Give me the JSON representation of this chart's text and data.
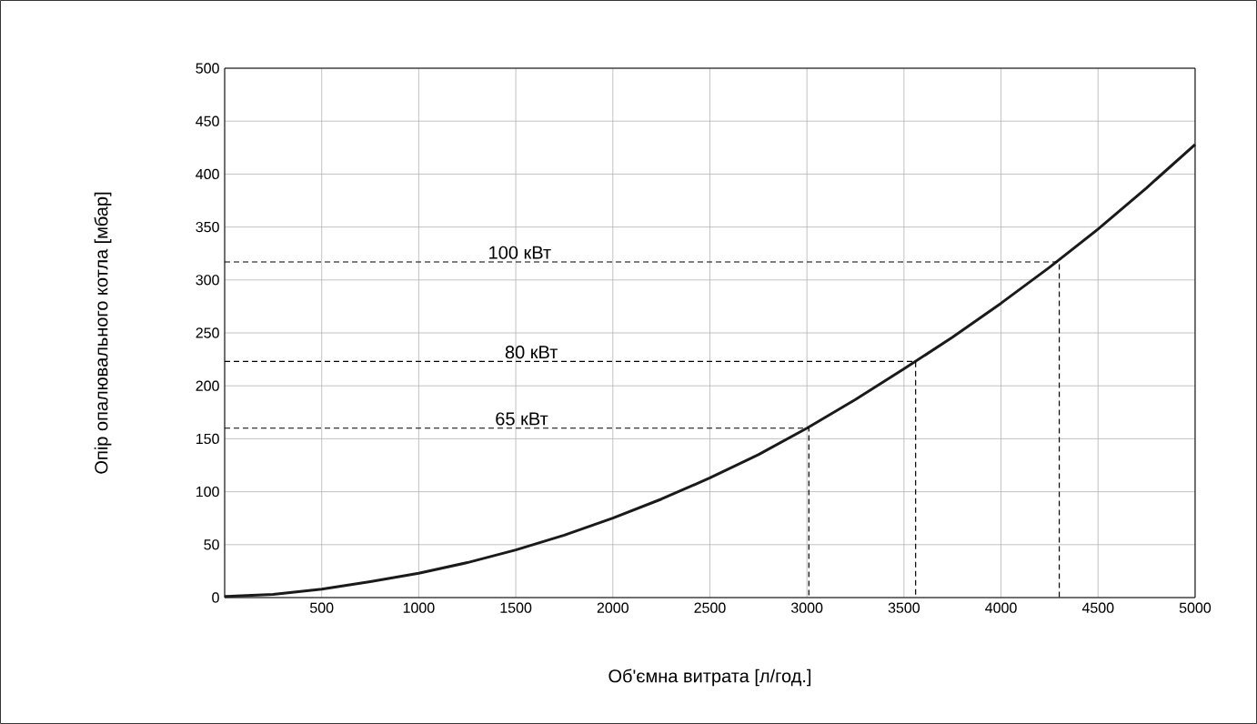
{
  "chart_data": {
    "type": "line",
    "xlabel": "Об'ємна витрата [л/год.]",
    "ylabel": "Опір опалювального котла [мбар]",
    "x": [
      0,
      250,
      500,
      750,
      1000,
      1250,
      1500,
      1750,
      2000,
      2250,
      2500,
      2750,
      3000,
      3250,
      3500,
      3750,
      4000,
      4250,
      4500,
      4750,
      5000
    ],
    "series": [
      {
        "color": "#1a1a1a",
        "values": [
          1,
          3,
          8,
          15,
          23,
          33,
          45,
          59,
          75,
          93,
          113,
          135,
          160,
          187,
          216,
          246,
          278,
          312,
          348,
          387,
          428
        ]
      },
      {
        "color": "#000000",
        "line_style": "dashed",
        "x": [
          0,
          4300,
          4300
        ],
        "values": [
          317,
          317,
          0
        ]
      },
      {
        "color": "#000000",
        "line_style": "dashed",
        "x": [
          0,
          3560,
          3560
        ],
        "values": [
          223,
          223,
          0
        ]
      },
      {
        "color": "#000000",
        "line_style": "dashed",
        "x": [
          0,
          3010,
          3010
        ],
        "values": [
          160,
          160,
          0
        ]
      }
    ],
    "xlim": [
      0,
      5000
    ],
    "ylim": [
      0,
      500
    ],
    "xticks": [
      {
        "value": 0,
        "label": null
      },
      500,
      1000,
      1500,
      2000,
      2500,
      3000,
      3500,
      4000,
      4500,
      5000
    ],
    "yticks": [
      0,
      50,
      100,
      150,
      200,
      250,
      300,
      350,
      400,
      450,
      500
    ],
    "grid": true,
    "annotations": [
      {
        "text": "100 кВт",
        "x": 1520,
        "y": 317
      },
      {
        "text": "80 кВт",
        "x": 1580,
        "y": 223
      },
      {
        "text": "65 кВт",
        "x": 1530,
        "y": 160
      }
    ]
  }
}
